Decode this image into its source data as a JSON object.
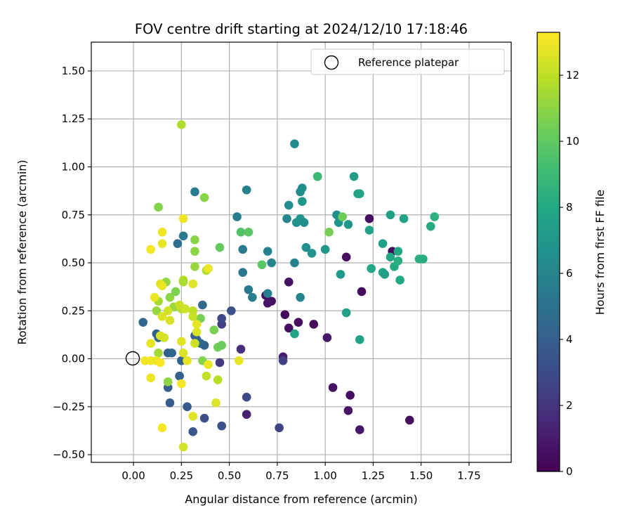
{
  "chart_data": {
    "type": "scatter",
    "title": "FOV centre drift starting at 2024/12/10 17:18:46",
    "xlabel": "Angular distance from reference (arcmin)",
    "ylabel": "Rotation from reference (arcmin)",
    "xlim": [
      -0.22,
      1.97
    ],
    "ylim": [
      -0.54,
      1.65
    ],
    "x_ticks": [
      "0.00",
      "0.25",
      "0.50",
      "0.75",
      "1.00",
      "1.25",
      "1.50",
      "1.75"
    ],
    "y_ticks": [
      "−0.50",
      "−0.25",
      "0.00",
      "0.25",
      "0.50",
      "0.75",
      "1.00",
      "1.25",
      "1.50"
    ],
    "grid": true,
    "legend": {
      "placement": "top-right",
      "entries": [
        "Reference platepar"
      ]
    },
    "reference_point": {
      "x": 0.0,
      "y": 0.0,
      "marker": "open-circle",
      "label": "Reference platepar"
    },
    "colorbar": {
      "label": "Hours from first FF file",
      "colormap": "viridis",
      "range": [
        0,
        13.3
      ],
      "ticks": [
        "0",
        "2",
        "4",
        "6",
        "8",
        "10",
        "12"
      ]
    },
    "points": [
      {
        "x": 1.23,
        "y": 0.73,
        "c": 0.5
      },
      {
        "x": 1.11,
        "y": 0.53,
        "c": 0.5
      },
      {
        "x": 1.35,
        "y": 0.56,
        "c": 0.3
      },
      {
        "x": 1.19,
        "y": 0.35,
        "c": 0.4
      },
      {
        "x": 0.69,
        "y": 0.33,
        "c": 0.5
      },
      {
        "x": 0.72,
        "y": 0.3,
        "c": 0.6
      },
      {
        "x": 0.7,
        "y": 0.29,
        "c": 0.8
      },
      {
        "x": 0.81,
        "y": 0.4,
        "c": 0.6
      },
      {
        "x": 0.79,
        "y": 0.23,
        "c": 0.4
      },
      {
        "x": 0.81,
        "y": 0.16,
        "c": 0.5
      },
      {
        "x": 0.86,
        "y": 0.19,
        "c": 0.4
      },
      {
        "x": 0.94,
        "y": 0.18,
        "c": 0.4
      },
      {
        "x": 1.01,
        "y": 0.11,
        "c": 0.8
      },
      {
        "x": 0.78,
        "y": 0.01,
        "c": 1.0
      },
      {
        "x": 1.04,
        "y": -0.15,
        "c": 0.6
      },
      {
        "x": 1.13,
        "y": -0.19,
        "c": 0.5
      },
      {
        "x": 1.12,
        "y": -0.27,
        "c": 0.7
      },
      {
        "x": 1.18,
        "y": -0.37,
        "c": 0.8
      },
      {
        "x": 1.44,
        "y": -0.32,
        "c": 0.5
      },
      {
        "x": 0.59,
        "y": -0.29,
        "c": 1.2
      },
      {
        "x": 0.56,
        "y": 0.05,
        "c": 1.8
      },
      {
        "x": 0.76,
        "y": -0.36,
        "c": 2.6
      },
      {
        "x": 0.78,
        "y": -0.01,
        "c": 2.5
      },
      {
        "x": 0.59,
        "y": -0.2,
        "c": 2.9
      },
      {
        "x": 0.45,
        "y": -0.02,
        "c": 2.2
      },
      {
        "x": 0.46,
        "y": 0.18,
        "c": 2.5
      },
      {
        "x": 0.46,
        "y": 0.21,
        "c": 2.8
      },
      {
        "x": 0.51,
        "y": 0.25,
        "c": 3.3
      },
      {
        "x": 0.46,
        "y": -0.35,
        "c": 3.3
      },
      {
        "x": 0.37,
        "y": -0.31,
        "c": 3.2
      },
      {
        "x": 0.31,
        "y": -0.38,
        "c": 3.6
      },
      {
        "x": 0.28,
        "y": -0.25,
        "c": 3.7
      },
      {
        "x": 0.19,
        "y": -0.23,
        "c": 3.8
      },
      {
        "x": 0.18,
        "y": -0.15,
        "c": 3.9
      },
      {
        "x": 0.24,
        "y": -0.09,
        "c": 4.0
      },
      {
        "x": 0.25,
        "y": -0.01,
        "c": 4.2
      },
      {
        "x": 0.18,
        "y": 0.03,
        "c": 4.0
      },
      {
        "x": 0.2,
        "y": 0.03,
        "c": 4.3
      },
      {
        "x": 0.05,
        "y": 0.19,
        "c": 4.4
      },
      {
        "x": 0.12,
        "y": 0.13,
        "c": 4.2
      },
      {
        "x": 0.13,
        "y": 0.11,
        "c": 4.5
      },
      {
        "x": 0.32,
        "y": 0.12,
        "c": 3.9
      },
      {
        "x": 0.33,
        "y": 0.1,
        "c": 4.1
      },
      {
        "x": 0.35,
        "y": 0.08,
        "c": 4.6
      },
      {
        "x": 0.37,
        "y": 0.07,
        "c": 4.3
      },
      {
        "x": 0.36,
        "y": 0.28,
        "c": 4.5
      },
      {
        "x": 0.23,
        "y": 0.6,
        "c": 4.8
      },
      {
        "x": 0.26,
        "y": 0.64,
        "c": 5.3
      },
      {
        "x": 0.32,
        "y": 0.87,
        "c": 5.5
      },
      {
        "x": 0.59,
        "y": 0.88,
        "c": 5.8
      },
      {
        "x": 0.54,
        "y": 0.74,
        "c": 5.6
      },
      {
        "x": 0.57,
        "y": 0.57,
        "c": 5.4
      },
      {
        "x": 0.57,
        "y": 0.45,
        "c": 5.2
      },
      {
        "x": 0.6,
        "y": 0.36,
        "c": 5.3
      },
      {
        "x": 0.62,
        "y": 0.32,
        "c": 5.5
      },
      {
        "x": 0.7,
        "y": 0.56,
        "c": 5.9
      },
      {
        "x": 0.72,
        "y": 0.5,
        "c": 6.0
      },
      {
        "x": 0.7,
        "y": 0.34,
        "c": 5.7
      },
      {
        "x": 0.84,
        "y": 1.12,
        "c": 6.3
      },
      {
        "x": 0.81,
        "y": 0.8,
        "c": 6.4
      },
      {
        "x": 0.8,
        "y": 0.73,
        "c": 6.1
      },
      {
        "x": 0.84,
        "y": 0.5,
        "c": 5.8
      },
      {
        "x": 0.87,
        "y": 0.32,
        "c": 6.0
      },
      {
        "x": 0.87,
        "y": 0.87,
        "c": 6.4
      },
      {
        "x": 0.88,
        "y": 0.89,
        "c": 6.6
      },
      {
        "x": 0.85,
        "y": 0.71,
        "c": 6.7
      },
      {
        "x": 0.87,
        "y": 0.73,
        "c": 6.8
      },
      {
        "x": 0.89,
        "y": 0.71,
        "c": 6.5
      },
      {
        "x": 0.88,
        "y": 0.82,
        "c": 7.0
      },
      {
        "x": 0.9,
        "y": 0.58,
        "c": 6.6
      },
      {
        "x": 0.93,
        "y": 0.55,
        "c": 6.8
      },
      {
        "x": 0.96,
        "y": 0.95,
        "c": 7.3
      },
      {
        "x": 1.0,
        "y": 0.57,
        "c": 7.0
      },
      {
        "x": 1.07,
        "y": 0.71,
        "c": 6.8
      },
      {
        "x": 1.06,
        "y": 0.75,
        "c": 6.6
      },
      {
        "x": 1.08,
        "y": 0.44,
        "c": 7.1
      },
      {
        "x": 1.12,
        "y": 0.7,
        "c": 7.0
      },
      {
        "x": 1.15,
        "y": 0.95,
        "c": 7.4
      },
      {
        "x": 1.17,
        "y": 0.86,
        "c": 7.6
      },
      {
        "x": 1.18,
        "y": 0.86,
        "c": 7.8
      },
      {
        "x": 1.11,
        "y": 0.24,
        "c": 7.5
      },
      {
        "x": 1.18,
        "y": 0.1,
        "c": 7.7
      },
      {
        "x": 1.23,
        "y": 0.67,
        "c": 7.7
      },
      {
        "x": 1.24,
        "y": 0.47,
        "c": 7.9
      },
      {
        "x": 1.3,
        "y": 0.6,
        "c": 7.5
      },
      {
        "x": 1.3,
        "y": 0.45,
        "c": 7.8
      },
      {
        "x": 1.34,
        "y": 0.75,
        "c": 7.6
      },
      {
        "x": 1.31,
        "y": 0.44,
        "c": 7.4
      },
      {
        "x": 1.34,
        "y": 0.53,
        "c": 8.0
      },
      {
        "x": 1.36,
        "y": 0.48,
        "c": 8.1
      },
      {
        "x": 1.38,
        "y": 0.56,
        "c": 7.9
      },
      {
        "x": 1.38,
        "y": 0.51,
        "c": 8.2
      },
      {
        "x": 1.39,
        "y": 0.41,
        "c": 8.0
      },
      {
        "x": 1.41,
        "y": 0.73,
        "c": 7.7
      },
      {
        "x": 1.49,
        "y": 0.52,
        "c": 8.3
      },
      {
        "x": 1.51,
        "y": 0.52,
        "c": 8.2
      },
      {
        "x": 1.55,
        "y": 0.69,
        "c": 8.1
      },
      {
        "x": 1.57,
        "y": 0.74,
        "c": 8.4
      },
      {
        "x": 0.96,
        "y": 0.95,
        "c": 8.9
      },
      {
        "x": 0.84,
        "y": 0.13,
        "c": 7.6
      },
      {
        "x": 0.67,
        "y": 0.49,
        "c": 9.8
      },
      {
        "x": 0.56,
        "y": 0.66,
        "c": 9.6
      },
      {
        "x": 0.6,
        "y": 0.66,
        "c": 9.9
      },
      {
        "x": 1.02,
        "y": 0.66,
        "c": 10.5
      },
      {
        "x": 1.09,
        "y": 0.74,
        "c": 10.3
      },
      {
        "x": 0.45,
        "y": 0.58,
        "c": 10.1
      },
      {
        "x": 0.44,
        "y": 0.06,
        "c": 10.4
      },
      {
        "x": 0.46,
        "y": 0.07,
        "c": 10.2
      },
      {
        "x": 0.42,
        "y": 0.15,
        "c": 10.6
      },
      {
        "x": 0.37,
        "y": 0.84,
        "c": 10.9
      },
      {
        "x": 0.13,
        "y": 0.79,
        "c": 10.8
      },
      {
        "x": 0.32,
        "y": 0.56,
        "c": 11.0
      },
      {
        "x": 0.32,
        "y": 0.62,
        "c": 10.9
      },
      {
        "x": 0.32,
        "y": 0.48,
        "c": 11.2
      },
      {
        "x": 0.35,
        "y": 0.21,
        "c": 10.6
      },
      {
        "x": 0.36,
        "y": -0.01,
        "c": 10.8
      },
      {
        "x": 0.19,
        "y": 0.32,
        "c": 11.0
      },
      {
        "x": 0.22,
        "y": 0.35,
        "c": 10.7
      },
      {
        "x": 0.17,
        "y": 0.4,
        "c": 11.1
      },
      {
        "x": 0.21,
        "y": 0.27,
        "c": 11.3
      },
      {
        "x": 0.12,
        "y": 0.25,
        "c": 11.2
      },
      {
        "x": 0.13,
        "y": 0.3,
        "c": 11.5
      },
      {
        "x": 0.18,
        "y": -0.12,
        "c": 11.0
      },
      {
        "x": 0.13,
        "y": 0.03,
        "c": 11.4
      },
      {
        "x": 0.25,
        "y": 1.22,
        "c": 11.7
      },
      {
        "x": 0.26,
        "y": 0.41,
        "c": 11.9
      },
      {
        "x": 0.26,
        "y": 0.4,
        "c": 11.6
      },
      {
        "x": 0.38,
        "y": 0.46,
        "c": 11.7
      },
      {
        "x": 0.44,
        "y": -0.11,
        "c": 11.9
      },
      {
        "x": 0.38,
        "y": -0.09,
        "c": 12.1
      },
      {
        "x": 0.31,
        "y": 0.25,
        "c": 12.0
      },
      {
        "x": 0.31,
        "y": 0.22,
        "c": 12.2
      },
      {
        "x": 0.25,
        "y": 0.26,
        "c": 11.8
      },
      {
        "x": 0.27,
        "y": 0.26,
        "c": 12.3
      },
      {
        "x": 0.19,
        "y": 0.2,
        "c": 12.5
      },
      {
        "x": 0.18,
        "y": 0.25,
        "c": 12.4
      },
      {
        "x": 0.15,
        "y": 0.22,
        "c": 12.6
      },
      {
        "x": 0.14,
        "y": 0.39,
        "c": 12.7
      },
      {
        "x": 0.15,
        "y": 0.38,
        "c": 12.9
      },
      {
        "x": 0.15,
        "y": 0.6,
        "c": 12.8
      },
      {
        "x": 0.15,
        "y": 0.66,
        "c": 13.0
      },
      {
        "x": 0.09,
        "y": 0.57,
        "c": 13.1
      },
      {
        "x": 0.26,
        "y": 0.73,
        "c": 13.0
      },
      {
        "x": 0.11,
        "y": 0.32,
        "c": 12.9
      },
      {
        "x": 0.14,
        "y": 0.12,
        "c": 12.6
      },
      {
        "x": 0.16,
        "y": 0.11,
        "c": 12.4
      },
      {
        "x": 0.09,
        "y": 0.08,
        "c": 12.8
      },
      {
        "x": 0.06,
        "y": -0.01,
        "c": 13.0
      },
      {
        "x": 0.09,
        "y": -0.01,
        "c": 13.1
      },
      {
        "x": 0.12,
        "y": -0.01,
        "c": 12.9
      },
      {
        "x": 0.14,
        "y": -0.02,
        "c": 13.2
      },
      {
        "x": 0.09,
        "y": -0.1,
        "c": 13.0
      },
      {
        "x": 0.25,
        "y": 0.09,
        "c": 12.7
      },
      {
        "x": 0.26,
        "y": 0.03,
        "c": 12.6
      },
      {
        "x": 0.28,
        "y": -0.01,
        "c": 12.8
      },
      {
        "x": 0.25,
        "y": -0.13,
        "c": 13.1
      },
      {
        "x": 0.31,
        "y": -0.3,
        "c": 12.7
      },
      {
        "x": 0.15,
        "y": -0.36,
        "c": 13.2
      },
      {
        "x": 0.26,
        "y": -0.46,
        "c": 12.4
      },
      {
        "x": 0.31,
        "y": 0.39,
        "c": 12.6
      },
      {
        "x": 0.39,
        "y": 0.47,
        "c": 12.9
      },
      {
        "x": 0.33,
        "y": 0.18,
        "c": 12.8
      },
      {
        "x": 0.33,
        "y": 0.14,
        "c": 12.6
      },
      {
        "x": 0.39,
        "y": -0.03,
        "c": 12.9
      },
      {
        "x": 0.43,
        "y": -0.23,
        "c": 12.6
      },
      {
        "x": 0.55,
        "y": -0.01,
        "c": 12.8
      },
      {
        "x": 0.24,
        "y": 0.28,
        "c": 12.2
      },
      {
        "x": 0.32,
        "y": 0.08,
        "c": 12.3
      }
    ]
  }
}
